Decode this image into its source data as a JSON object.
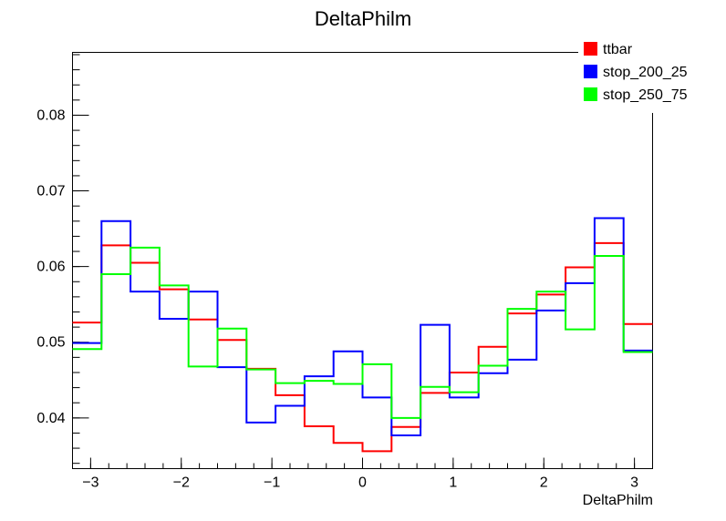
{
  "chart_data": {
    "type": "histogram-step",
    "title": "DeltaPhilm",
    "xlabel": "DeltaPhilm",
    "ylabel": "",
    "xlim": [
      -3.2,
      3.2
    ],
    "ylim": [
      0.0333,
      0.0883
    ],
    "bin_edges": [
      -3.2,
      -2.88,
      -2.56,
      -2.24,
      -1.92,
      -1.6,
      -1.28,
      -0.96,
      -0.64,
      -0.32,
      0.0,
      0.32,
      0.64,
      0.96,
      1.28,
      1.6,
      1.92,
      2.24,
      2.56,
      2.88,
      3.2
    ],
    "x_ticks": [
      -3,
      -2,
      -1,
      0,
      1,
      2,
      3
    ],
    "x_tick_labels": [
      "−3",
      "−2",
      "−1",
      "0",
      "1",
      "2",
      "3"
    ],
    "y_ticks": [
      0.04,
      0.05,
      0.06,
      0.07,
      0.08
    ],
    "y_tick_labels": [
      "0.04",
      "0.05",
      "0.06",
      "0.07",
      "0.08"
    ],
    "grid": false,
    "legend_position": "top-right",
    "series": [
      {
        "name": "ttbar",
        "color": "#ff0000",
        "values": [
          0.0526,
          0.0628,
          0.0605,
          0.057,
          0.053,
          0.0503,
          0.0465,
          0.043,
          0.0389,
          0.0367,
          0.0356,
          0.0388,
          0.0433,
          0.046,
          0.0494,
          0.0538,
          0.0563,
          0.0599,
          0.0631,
          0.0524
        ]
      },
      {
        "name": "stop_200_25",
        "color": "#0000ff",
        "values": [
          0.0499,
          0.066,
          0.0567,
          0.0531,
          0.0567,
          0.0467,
          0.0394,
          0.0416,
          0.0455,
          0.0488,
          0.0427,
          0.0377,
          0.0523,
          0.0427,
          0.0459,
          0.0477,
          0.0542,
          0.0578,
          0.0664,
          0.0489
        ]
      },
      {
        "name": "stop_250_75",
        "color": "#00ff00",
        "values": [
          0.0491,
          0.059,
          0.0625,
          0.0575,
          0.0468,
          0.0518,
          0.0464,
          0.0446,
          0.0449,
          0.0445,
          0.0471,
          0.04,
          0.0441,
          0.0434,
          0.0469,
          0.0544,
          0.0567,
          0.0517,
          0.0614,
          0.0487
        ]
      }
    ]
  }
}
